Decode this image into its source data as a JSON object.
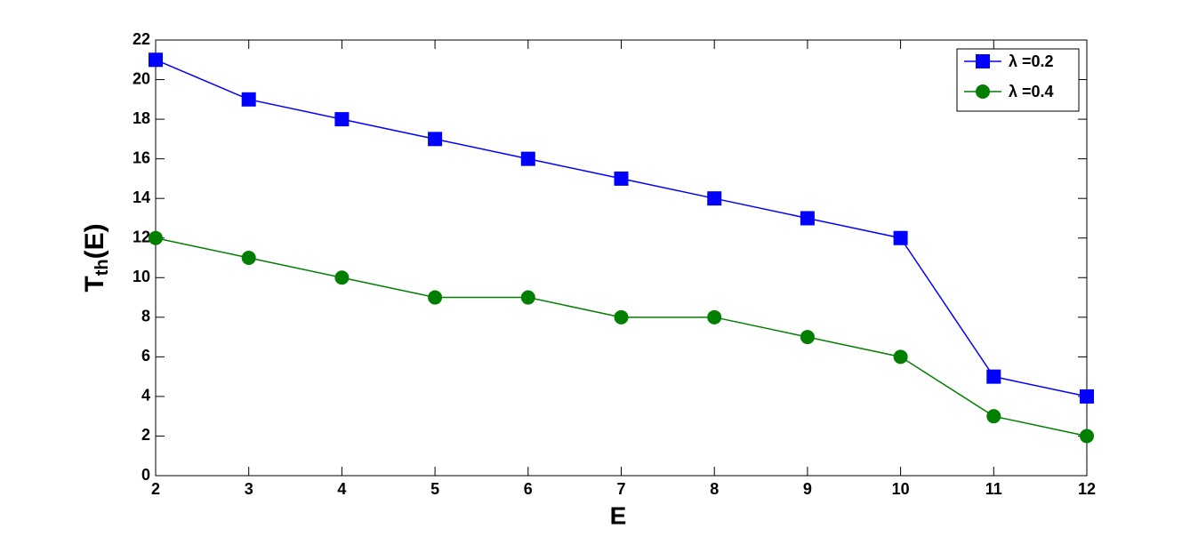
{
  "chart_data": {
    "type": "line",
    "x_label": "E",
    "y_label": {
      "main": "T",
      "sub": "th",
      "rest": "(E)"
    },
    "x": [
      2,
      3,
      4,
      5,
      6,
      7,
      8,
      9,
      10,
      11,
      12
    ],
    "series": [
      {
        "name": "λ =0.2",
        "color": "#0000ff",
        "marker": "square",
        "values": [
          21,
          19,
          18,
          17,
          16,
          15,
          14,
          13,
          12,
          5,
          4
        ]
      },
      {
        "name": "λ =0.4",
        "color": "#007f00",
        "marker": "circle",
        "values": [
          12,
          11,
          10,
          9,
          9,
          8,
          8,
          7,
          6,
          3,
          2
        ]
      }
    ],
    "xlim": [
      2,
      12
    ],
    "xticks": [
      2,
      3,
      4,
      5,
      6,
      7,
      8,
      9,
      10,
      11,
      12
    ],
    "ylim": [
      0,
      22
    ],
    "yticks": [
      0,
      2,
      4,
      6,
      8,
      10,
      12,
      14,
      16,
      18,
      20,
      22
    ],
    "grid": false,
    "legend": "upper right"
  }
}
